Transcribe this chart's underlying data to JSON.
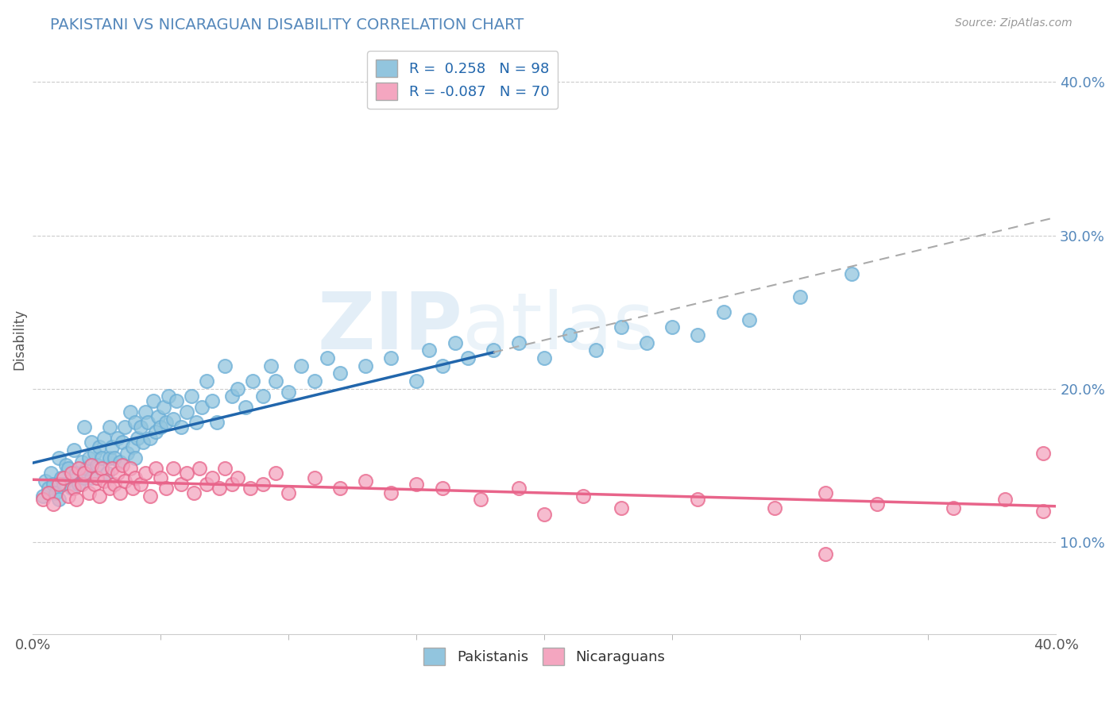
{
  "title": "PAKISTANI VS NICARAGUAN DISABILITY CORRELATION CHART",
  "source": "Source: ZipAtlas.com",
  "ylabel": "Disability",
  "xmin": 0.0,
  "xmax": 0.4,
  "ymin": 0.04,
  "ymax": 0.425,
  "ytick_labels": [
    "10.0%",
    "20.0%",
    "30.0%",
    "40.0%"
  ],
  "ytick_values": [
    0.1,
    0.2,
    0.3,
    0.4
  ],
  "xtick_labels": [
    "0.0%",
    "40.0%"
  ],
  "xtick_values": [
    0.0,
    0.4
  ],
  "pakistani_color": "#92c5de",
  "pakistani_edge": "#6baed6",
  "nicaraguan_color": "#f4a6c0",
  "nicaraguan_edge": "#e8648a",
  "pakistani_R": 0.258,
  "pakistani_N": 98,
  "nicaraguan_R": -0.087,
  "nicaraguan_N": 70,
  "pakistani_line_color": "#2166ac",
  "pakistani_dash_color": "#aaaaaa",
  "nicaraguan_line_color": "#e8648a",
  "watermark_zip": "ZIP",
  "watermark_atlas": "atlas",
  "legend_label_1": "Pakistanis",
  "legend_label_2": "Nicaraguans",
  "title_color": "#5588bb",
  "source_color": "#999999",
  "tick_color": "#5588bb",
  "pakistani_x": [
    0.004,
    0.005,
    0.006,
    0.007,
    0.008,
    0.009,
    0.01,
    0.01,
    0.011,
    0.012,
    0.013,
    0.014,
    0.015,
    0.016,
    0.017,
    0.018,
    0.019,
    0.02,
    0.02,
    0.021,
    0.022,
    0.023,
    0.023,
    0.024,
    0.025,
    0.026,
    0.027,
    0.028,
    0.029,
    0.03,
    0.03,
    0.031,
    0.032,
    0.033,
    0.034,
    0.035,
    0.036,
    0.037,
    0.038,
    0.039,
    0.04,
    0.04,
    0.041,
    0.042,
    0.043,
    0.044,
    0.045,
    0.046,
    0.047,
    0.048,
    0.049,
    0.05,
    0.051,
    0.052,
    0.053,
    0.055,
    0.056,
    0.058,
    0.06,
    0.062,
    0.064,
    0.066,
    0.068,
    0.07,
    0.072,
    0.075,
    0.078,
    0.08,
    0.083,
    0.086,
    0.09,
    0.093,
    0.095,
    0.1,
    0.105,
    0.11,
    0.115,
    0.12,
    0.13,
    0.14,
    0.15,
    0.155,
    0.16,
    0.165,
    0.17,
    0.18,
    0.19,
    0.2,
    0.21,
    0.22,
    0.23,
    0.24,
    0.25,
    0.26,
    0.27,
    0.28,
    0.3,
    0.32
  ],
  "pakistani_y": [
    0.13,
    0.14,
    0.135,
    0.145,
    0.138,
    0.132,
    0.128,
    0.155,
    0.142,
    0.138,
    0.15,
    0.148,
    0.135,
    0.16,
    0.145,
    0.138,
    0.152,
    0.142,
    0.175,
    0.148,
    0.155,
    0.165,
    0.142,
    0.158,
    0.15,
    0.162,
    0.155,
    0.168,
    0.145,
    0.155,
    0.175,
    0.162,
    0.155,
    0.168,
    0.152,
    0.165,
    0.175,
    0.158,
    0.185,
    0.162,
    0.155,
    0.178,
    0.168,
    0.175,
    0.165,
    0.185,
    0.178,
    0.168,
    0.192,
    0.172,
    0.182,
    0.175,
    0.188,
    0.178,
    0.195,
    0.18,
    0.192,
    0.175,
    0.185,
    0.195,
    0.178,
    0.188,
    0.205,
    0.192,
    0.178,
    0.215,
    0.195,
    0.2,
    0.188,
    0.205,
    0.195,
    0.215,
    0.205,
    0.198,
    0.215,
    0.205,
    0.22,
    0.21,
    0.215,
    0.22,
    0.205,
    0.225,
    0.215,
    0.23,
    0.22,
    0.225,
    0.23,
    0.22,
    0.235,
    0.225,
    0.24,
    0.23,
    0.24,
    0.235,
    0.25,
    0.245,
    0.26,
    0.275
  ],
  "nicaraguan_x": [
    0.004,
    0.006,
    0.008,
    0.01,
    0.012,
    0.014,
    0.015,
    0.016,
    0.017,
    0.018,
    0.019,
    0.02,
    0.022,
    0.023,
    0.024,
    0.025,
    0.026,
    0.027,
    0.028,
    0.03,
    0.031,
    0.032,
    0.033,
    0.034,
    0.035,
    0.036,
    0.038,
    0.039,
    0.04,
    0.042,
    0.044,
    0.046,
    0.048,
    0.05,
    0.052,
    0.055,
    0.058,
    0.06,
    0.063,
    0.065,
    0.068,
    0.07,
    0.073,
    0.075,
    0.078,
    0.08,
    0.085,
    0.09,
    0.095,
    0.1,
    0.11,
    0.12,
    0.13,
    0.14,
    0.15,
    0.16,
    0.175,
    0.19,
    0.2,
    0.215,
    0.23,
    0.26,
    0.29,
    0.31,
    0.33,
    0.36,
    0.38,
    0.395,
    0.31,
    0.395
  ],
  "nicaraguan_y": [
    0.128,
    0.132,
    0.125,
    0.138,
    0.142,
    0.13,
    0.145,
    0.135,
    0.128,
    0.148,
    0.138,
    0.145,
    0.132,
    0.15,
    0.138,
    0.142,
    0.13,
    0.148,
    0.14,
    0.135,
    0.148,
    0.138,
    0.145,
    0.132,
    0.15,
    0.14,
    0.148,
    0.135,
    0.142,
    0.138,
    0.145,
    0.13,
    0.148,
    0.142,
    0.135,
    0.148,
    0.138,
    0.145,
    0.132,
    0.148,
    0.138,
    0.142,
    0.135,
    0.148,
    0.138,
    0.142,
    0.135,
    0.138,
    0.145,
    0.132,
    0.142,
    0.135,
    0.14,
    0.132,
    0.138,
    0.135,
    0.128,
    0.135,
    0.118,
    0.13,
    0.122,
    0.128,
    0.122,
    0.132,
    0.125,
    0.122,
    0.128,
    0.12,
    0.092,
    0.158
  ],
  "pakistani_line_xmax_solid": 0.18,
  "pakistani_line_xmax_dash": 0.4
}
